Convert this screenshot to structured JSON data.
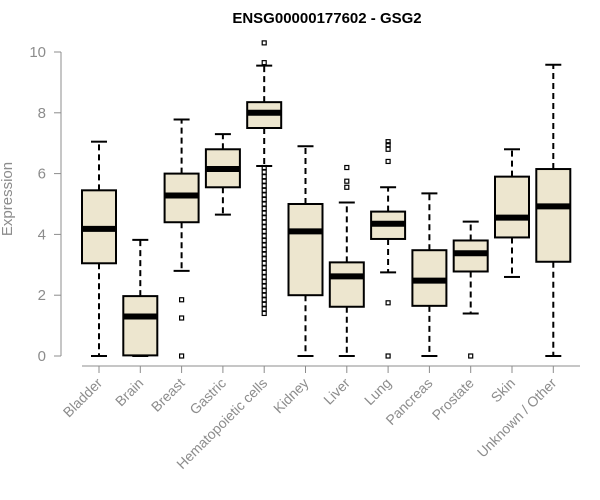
{
  "chart_data": {
    "type": "boxplot",
    "title": "ENSG00000177602 - GSG2",
    "ylabel": "Expression",
    "xlabel": "",
    "ylim": [
      0,
      10
    ],
    "yticks": [
      "0",
      "2",
      "4",
      "6",
      "8",
      "10"
    ],
    "grid": false,
    "colors": {
      "box_fill": "#ede6cf",
      "box_stroke": "#000000",
      "axis": "#8c8c8c"
    },
    "categories": [
      "Bladder",
      "Brain",
      "Breast",
      "Gastric",
      "Hematopoietic cells",
      "Kidney",
      "Liver",
      "Lung",
      "Pancreas",
      "Prostate",
      "Skin",
      "Unknown / Other"
    ],
    "boxes": [
      {
        "category": "Bladder",
        "whisker_low": 0,
        "q1": 3.05,
        "median": 4.18,
        "q3": 5.45,
        "whisker_high": 7.05,
        "outliers": []
      },
      {
        "category": "Brain",
        "whisker_low": 0,
        "q1": 0.02,
        "median": 1.3,
        "q3": 1.97,
        "whisker_high": 3.82,
        "outliers": []
      },
      {
        "category": "Breast",
        "whisker_low": 2.8,
        "q1": 4.4,
        "median": 5.28,
        "q3": 6.0,
        "whisker_high": 7.78,
        "outliers": [
          1.85,
          1.25,
          0.0
        ]
      },
      {
        "category": "Gastric",
        "whisker_low": 4.65,
        "q1": 5.55,
        "median": 6.15,
        "q3": 6.8,
        "whisker_high": 7.3,
        "outliers": []
      },
      {
        "category": "Hematopoietic cells",
        "whisker_low": 6.25,
        "q1": 7.5,
        "median": 8.0,
        "q3": 8.35,
        "whisker_high": 9.55,
        "outliers": [
          10.3,
          9.65,
          6.2,
          6.05,
          5.9,
          5.75,
          5.6,
          5.45,
          5.3,
          5.15,
          5.0,
          4.85,
          4.7,
          4.55,
          4.4,
          4.25,
          4.1,
          3.95,
          3.8,
          3.65,
          3.5,
          3.35,
          3.2,
          3.05,
          2.9,
          2.75,
          2.6,
          2.45,
          2.3,
          2.15,
          2.0,
          1.85,
          1.7,
          1.55,
          1.4
        ]
      },
      {
        "category": "Kidney",
        "whisker_low": 0,
        "q1": 2.0,
        "median": 4.1,
        "q3": 5.0,
        "whisker_high": 6.9,
        "outliers": []
      },
      {
        "category": "Liver",
        "whisker_low": 0,
        "q1": 1.62,
        "median": 2.62,
        "q3": 3.08,
        "whisker_high": 5.05,
        "outliers": [
          6.2,
          5.75,
          5.55
        ]
      },
      {
        "category": "Lung",
        "whisker_low": 2.75,
        "q1": 3.85,
        "median": 4.35,
        "q3": 4.75,
        "whisker_high": 5.55,
        "outliers": [
          7.05,
          6.95,
          6.8,
          6.4,
          1.75,
          0.0
        ]
      },
      {
        "category": "Pancreas",
        "whisker_low": 0,
        "q1": 1.65,
        "median": 2.48,
        "q3": 3.48,
        "whisker_high": 5.35,
        "outliers": []
      },
      {
        "category": "Prostate",
        "whisker_low": 1.4,
        "q1": 2.78,
        "median": 3.38,
        "q3": 3.8,
        "whisker_high": 4.42,
        "outliers": [
          0.0
        ]
      },
      {
        "category": "Skin",
        "whisker_low": 2.6,
        "q1": 3.9,
        "median": 4.55,
        "q3": 5.9,
        "whisker_high": 6.8,
        "outliers": []
      },
      {
        "category": "Unknown / Other",
        "whisker_low": 0,
        "q1": 3.1,
        "median": 4.92,
        "q3": 6.15,
        "whisker_high": 9.58,
        "outliers": []
      }
    ]
  }
}
